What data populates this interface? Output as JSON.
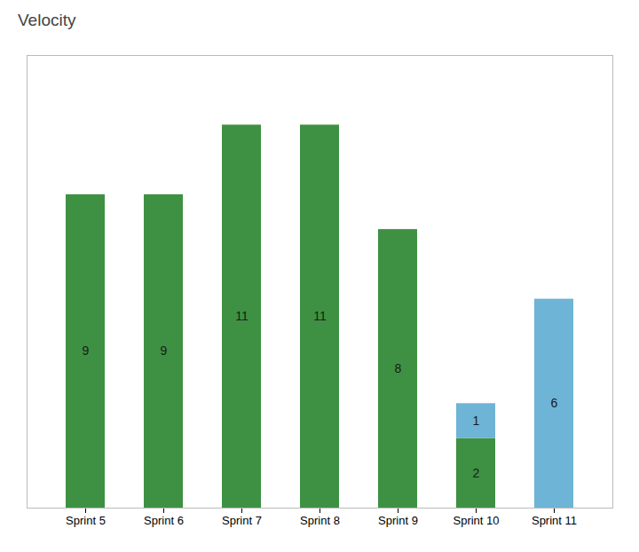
{
  "chart_data": {
    "type": "bar",
    "title": "Velocity",
    "categories": [
      "Sprint 5",
      "Sprint 6",
      "Sprint 7",
      "Sprint 8",
      "Sprint 9",
      "Sprint 10",
      "Sprint 11"
    ],
    "series": [
      {
        "color": "#3E9142",
        "values": [
          9,
          9,
          11,
          11,
          8,
          2,
          0
        ]
      },
      {
        "color": "#6EB4D6",
        "values": [
          0,
          0,
          0,
          0,
          0,
          1,
          6
        ]
      }
    ],
    "stacked": true,
    "ylim": [
      0,
      13
    ],
    "data_labels": true,
    "tick_labels": "x",
    "grid": false
  }
}
